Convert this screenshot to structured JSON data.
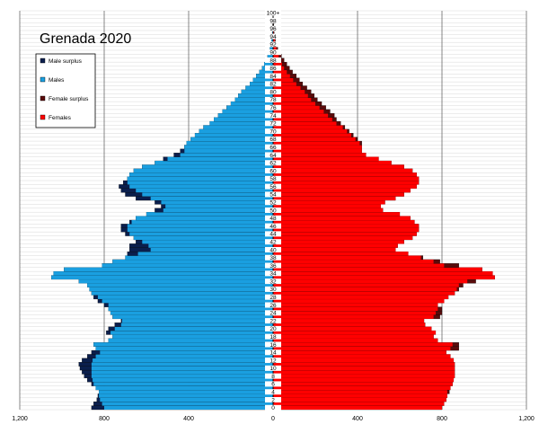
{
  "chart_data": {
    "type": "bar",
    "orientation": "horizontal",
    "title": "Grenada 2020",
    "xlim": [
      -1200,
      1200
    ],
    "x_tick_labels": [
      "1,200",
      "800",
      "400",
      "0",
      "400",
      "800",
      "1,200"
    ],
    "x_tick_values": [
      -1200,
      -800,
      -400,
      0,
      400,
      800,
      1200
    ],
    "y_tick_labels": [
      "0",
      "2",
      "4",
      "6",
      "8",
      "10",
      "12",
      "14",
      "16",
      "18",
      "20",
      "22",
      "24",
      "26",
      "28",
      "30",
      "32",
      "34",
      "36",
      "38",
      "40",
      "42",
      "44",
      "46",
      "48",
      "50",
      "52",
      "54",
      "56",
      "58",
      "60",
      "62",
      "64",
      "66",
      "68",
      "70",
      "72",
      "74",
      "76",
      "78",
      "80",
      "82",
      "84",
      "86",
      "88",
      "90",
      "92",
      "94",
      "96",
      "98",
      "100+"
    ],
    "legend": [
      {
        "name": "Male surplus",
        "color": "#0b1f4d"
      },
      {
        "name": "Males",
        "color": "#1a9fe0"
      },
      {
        "name": "Female surplus",
        "color": "#5a0b0b"
      },
      {
        "name": "Females",
        "color": "#ff0000"
      }
    ],
    "legend_position": "top-left",
    "grid": true,
    "ages": [
      0,
      1,
      2,
      3,
      4,
      5,
      6,
      7,
      8,
      9,
      10,
      11,
      12,
      13,
      14,
      15,
      16,
      17,
      18,
      19,
      20,
      21,
      22,
      23,
      24,
      25,
      26,
      27,
      28,
      29,
      30,
      31,
      32,
      33,
      34,
      35,
      36,
      37,
      38,
      39,
      40,
      41,
      42,
      43,
      44,
      45,
      46,
      47,
      48,
      49,
      50,
      51,
      52,
      53,
      54,
      55,
      56,
      57,
      58,
      59,
      60,
      61,
      62,
      63,
      64,
      65,
      66,
      67,
      68,
      69,
      70,
      71,
      72,
      73,
      74,
      75,
      76,
      77,
      78,
      79,
      80,
      81,
      82,
      83,
      84,
      85,
      86,
      87,
      88,
      89,
      90,
      91,
      92,
      93,
      94,
      95,
      96,
      97,
      98,
      99,
      100
    ],
    "males": [
      860,
      850,
      835,
      830,
      825,
      840,
      860,
      880,
      895,
      905,
      915,
      920,
      905,
      880,
      860,
      840,
      850,
      780,
      760,
      790,
      780,
      750,
      720,
      760,
      770,
      780,
      800,
      830,
      850,
      860,
      870,
      880,
      920,
      1050,
      1040,
      990,
      810,
      760,
      700,
      690,
      680,
      680,
      650,
      660,
      700,
      720,
      720,
      680,
      650,
      600,
      560,
      530,
      560,
      650,
      700,
      720,
      730,
      710,
      690,
      680,
      660,
      620,
      560,
      520,
      470,
      440,
      420,
      410,
      390,
      370,
      350,
      330,
      300,
      280,
      260,
      240,
      220,
      200,
      180,
      165,
      150,
      130,
      110,
      95,
      80,
      65,
      52,
      42,
      34,
      26,
      20,
      15,
      11,
      8,
      6,
      4,
      3,
      2,
      1,
      1,
      1
    ],
    "females": [
      800,
      810,
      820,
      825,
      835,
      840,
      850,
      855,
      860,
      860,
      860,
      860,
      855,
      840,
      820,
      880,
      880,
      780,
      760,
      770,
      750,
      720,
      715,
      790,
      800,
      800,
      780,
      810,
      830,
      860,
      880,
      900,
      960,
      1050,
      1040,
      990,
      880,
      790,
      710,
      640,
      580,
      590,
      620,
      660,
      680,
      690,
      690,
      670,
      650,
      600,
      520,
      510,
      530,
      580,
      620,
      650,
      680,
      690,
      690,
      680,
      660,
      620,
      560,
      500,
      440,
      420,
      420,
      420,
      400,
      380,
      360,
      340,
      320,
      300,
      290,
      270,
      250,
      230,
      210,
      195,
      180,
      160,
      140,
      125,
      110,
      92,
      78,
      65,
      52,
      40,
      30,
      22,
      16,
      11,
      8,
      5,
      4,
      3,
      2,
      1,
      1
    ]
  }
}
